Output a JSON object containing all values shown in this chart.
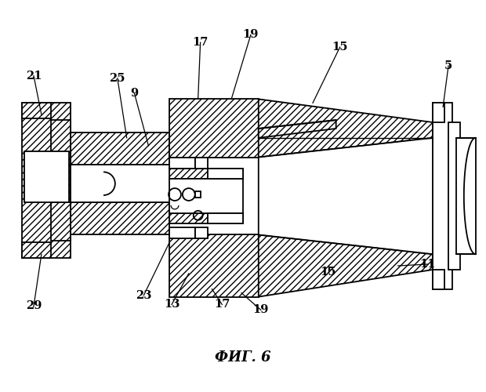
{
  "title": "ФИГ. 6",
  "title_fontsize": 13,
  "bg_color": "#ffffff",
  "line_color": "#000000"
}
